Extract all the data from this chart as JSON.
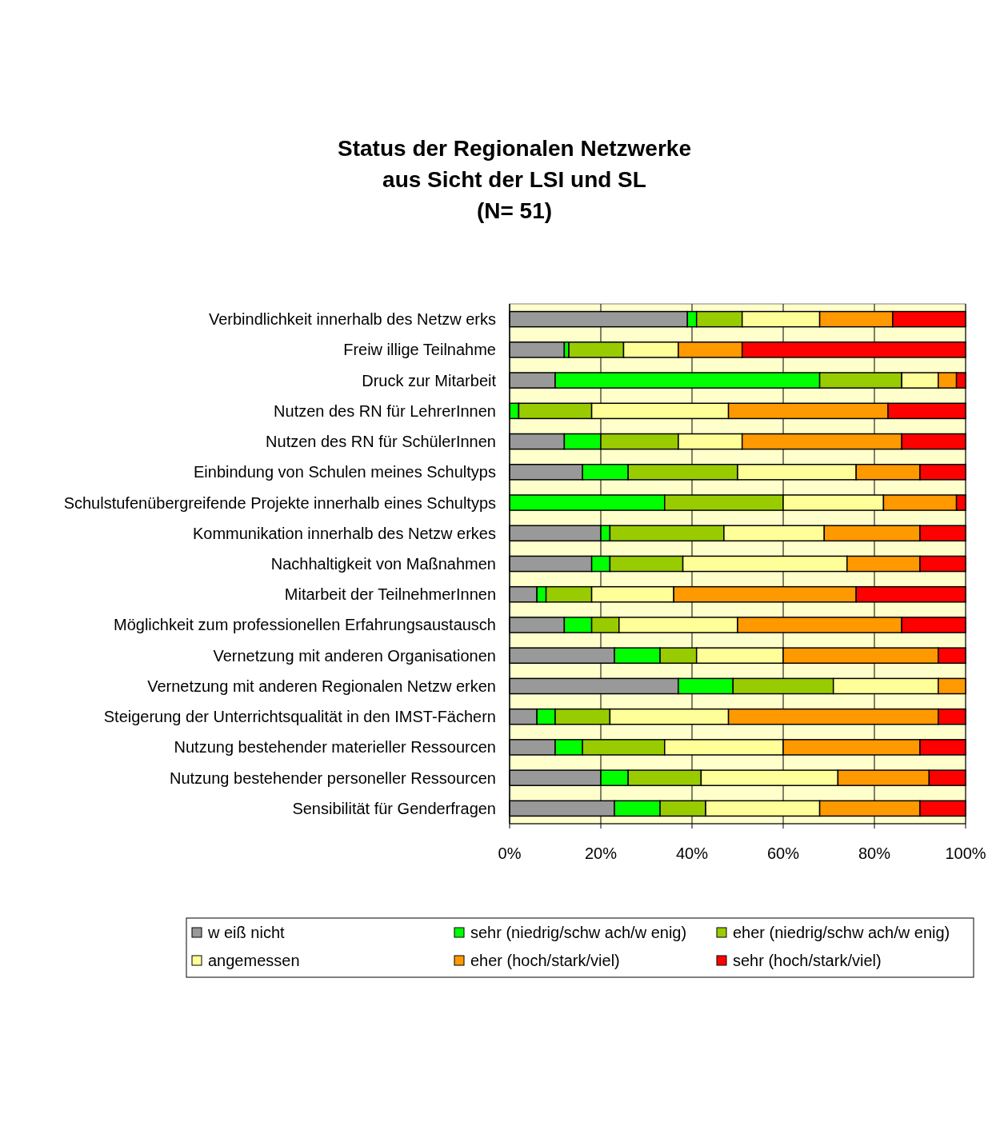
{
  "chart_data": {
    "type": "bar",
    "orientation": "horizontal",
    "stacked": true,
    "title": "Status der Regionalen Netzwerke\naus Sicht der LSI und SL\n(N= 51)",
    "categories": [
      "Verbindlichkeit innerhalb des Netzw erks",
      "Freiw illige Teilnahme",
      "Druck zur Mitarbeit",
      "Nutzen des RN für LehrerInnen",
      "Nutzen des RN für SchülerInnen",
      "Einbindung von Schulen meines Schultyps",
      "Schulstufenübergreifende Projekte innerhalb eines Schultyps",
      "Kommunikation innerhalb des Netzw erkes",
      "Nachhaltigkeit von Maßnahmen",
      "Mitarbeit der TeilnehmerInnen",
      "Möglichkeit zum professionellen Erfahrungsaustausch",
      "Vernetzung mit anderen Organisationen",
      "Vernetzung mit anderen Regionalen Netzw erken",
      "Steigerung der Unterrichtsqualität in den IMST-Fächern",
      "Nutzung bestehender materieller Ressourcen",
      "Nutzung bestehender personeller Ressourcen",
      "Sensibilität für Genderfragen"
    ],
    "series": [
      {
        "name": "w eiß nicht",
        "color": "#999999",
        "values": [
          39,
          12,
          10,
          0,
          12,
          16,
          0,
          20,
          18,
          6,
          12,
          23,
          37,
          6,
          10,
          20,
          23
        ]
      },
      {
        "name": "sehr (niedrig/schw ach/w enig)",
        "color": "#00ff00",
        "values": [
          2,
          1,
          58,
          2,
          8,
          10,
          34,
          2,
          4,
          2,
          6,
          10,
          12,
          4,
          6,
          6,
          10
        ]
      },
      {
        "name": "eher (niedrig/schw ach/w enig)",
        "color": "#99cc00",
        "values": [
          10,
          12,
          18,
          16,
          17,
          24,
          26,
          25,
          16,
          10,
          6,
          8,
          22,
          12,
          18,
          16,
          10
        ]
      },
      {
        "name": "angemessen",
        "color": "#ffff99",
        "values": [
          17,
          12,
          8,
          30,
          14,
          26,
          22,
          22,
          36,
          18,
          26,
          19,
          23,
          26,
          26,
          30,
          25
        ]
      },
      {
        "name": "eher (hoch/stark/viel)",
        "color": "#ff9900",
        "values": [
          16,
          14,
          4,
          35,
          35,
          14,
          16,
          21,
          16,
          40,
          36,
          34,
          6,
          46,
          30,
          20,
          22
        ]
      },
      {
        "name": "sehr (hoch/stark/viel)",
        "color": "#ff0000",
        "values": [
          16,
          49,
          2,
          17,
          14,
          10,
          2,
          10,
          10,
          24,
          14,
          6,
          0,
          6,
          10,
          8,
          10
        ]
      }
    ],
    "xlim": [
      0,
      100
    ],
    "xticks": [
      {
        "value": 0,
        "label": "0%"
      },
      {
        "value": 20,
        "label": "20%"
      },
      {
        "value": 40,
        "label": "40%"
      },
      {
        "value": 60,
        "label": "60%"
      },
      {
        "value": 80,
        "label": "80%"
      },
      {
        "value": 100,
        "label": "100%"
      }
    ],
    "grid": "x",
    "legend": "bottom"
  }
}
